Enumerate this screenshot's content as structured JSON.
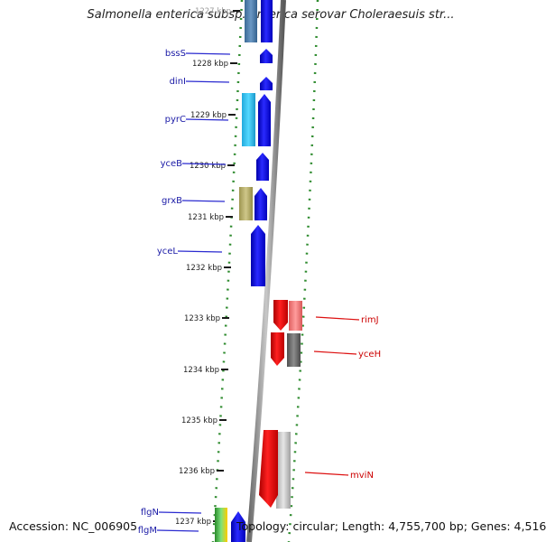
{
  "title": "Salmonella enterica subsp. enterica serovar Choleraesuis str...",
  "footer": {
    "accession": "Accession: NC_006905",
    "topology": "Topology: circular; Length: 4,755,700 bp; Genes: 4,516"
  },
  "scale": {
    "unit": "kbp",
    "ticks": [
      {
        "label": "1227 kbp"
      },
      {
        "label": "1228 kbp"
      },
      {
        "label": "1229 kbp"
      },
      {
        "label": "1230 kbp"
      },
      {
        "label": "1231 kbp"
      },
      {
        "label": "1232 kbp"
      },
      {
        "label": "1233 kbp"
      },
      {
        "label": "1234 kbp"
      },
      {
        "label": "1235 kbp"
      },
      {
        "label": "1236 kbp"
      },
      {
        "label": "1237 kbp"
      }
    ]
  },
  "genes_left": [
    {
      "name": "bssS"
    },
    {
      "name": "dinI"
    },
    {
      "name": "pyrC"
    },
    {
      "name": "yceB"
    },
    {
      "name": "grxB"
    },
    {
      "name": "yceL"
    },
    {
      "name": "flgN"
    },
    {
      "name": "flgM"
    }
  ],
  "genes_right": [
    {
      "name": "rimJ"
    },
    {
      "name": "yceH"
    },
    {
      "name": "mviN"
    }
  ],
  "colors": {
    "forward_strand": "#0000ee",
    "reverse_strand": "#ee0000",
    "left_label": "#1a1aa6",
    "right_label": "#cc0000",
    "tick": "#2e8b2e",
    "backbone": "#888888"
  }
}
